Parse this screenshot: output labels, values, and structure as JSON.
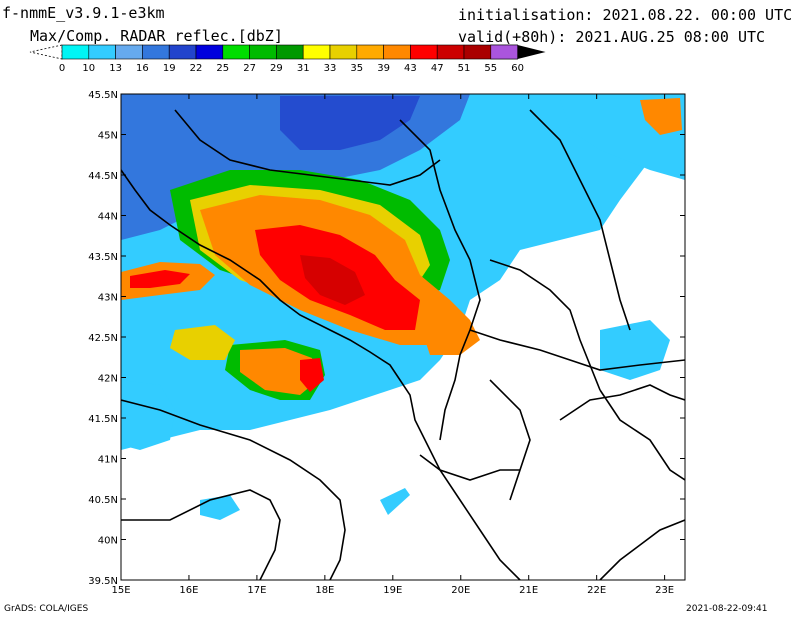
{
  "header": {
    "model": "f-nmmE_v3.9.1-e3km",
    "variable": "Max/Comp. RADAR reflec.[dbZ]",
    "initialisation": "initialisation: 2021.08.22. 00:00 UTC",
    "valid": "valid(+80h): 2021.AUG.25 08:00 UTC"
  },
  "colorbar": {
    "labels": [
      "0",
      "10",
      "13",
      "16",
      "19",
      "22",
      "25",
      "27",
      "29",
      "31",
      "33",
      "35",
      "39",
      "43",
      "47",
      "51",
      "55",
      "60"
    ],
    "colors": [
      "#00f5f5",
      "#33ccff",
      "#66aaee",
      "#3377dd",
      "#2244cc",
      "#0000dd",
      "#00dd00",
      "#00bb00",
      "#009900",
      "#ffff00",
      "#e8d000",
      "#ffaa00",
      "#ff8800",
      "#ff0000",
      "#cc0000",
      "#aa0000",
      "#ff00ff",
      "#aa55dd"
    ]
  },
  "map": {
    "lat_labels": [
      "45.5N",
      "45N",
      "44.5N",
      "44N",
      "43.5N",
      "43N",
      "42.5N",
      "42N",
      "41.5N",
      "41N",
      "40.5N",
      "40N",
      "39.5N"
    ],
    "lon_labels": [
      "15E",
      "16E",
      "17E",
      "18E",
      "19E",
      "20E",
      "21E",
      "22E",
      "23E"
    ],
    "lon_range": [
      15,
      23.3
    ],
    "lat_range": [
      39.5,
      45.5
    ]
  },
  "footer": {
    "credit": "GrADS: COLA/IGES",
    "timestamp": "2021-08-22-09:41"
  }
}
